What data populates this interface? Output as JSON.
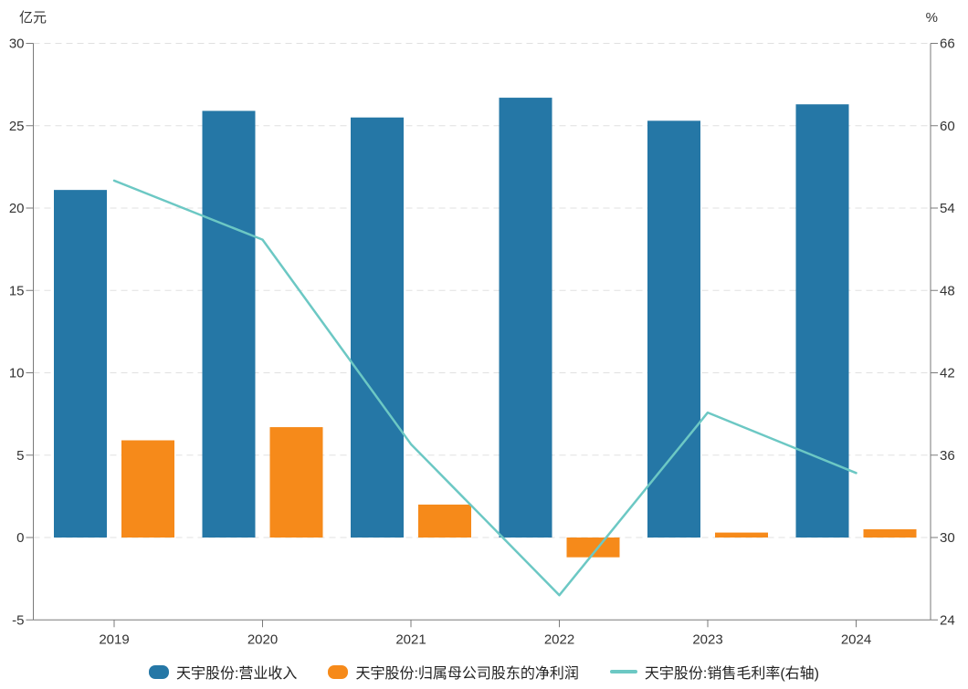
{
  "chart_data": {
    "type": "combo_bar_line",
    "categories": [
      "2019",
      "2020",
      "2021",
      "2022",
      "2023",
      "2024"
    ],
    "series": [
      {
        "key": "revenue",
        "name": "天宇股份:营业收入",
        "type": "bar",
        "axis": "left",
        "color": "#2577a6",
        "values": [
          21.1,
          25.9,
          25.5,
          26.7,
          25.3,
          26.3
        ]
      },
      {
        "key": "net-profit",
        "name": "天宇股份:归属母公司股东的净利润",
        "type": "bar",
        "axis": "left",
        "color": "#f68a1a",
        "values": [
          5.9,
          6.7,
          2.0,
          -1.2,
          0.3,
          0.5
        ]
      },
      {
        "key": "gross-margin",
        "name": "天宇股份:销售毛利率(右轴)",
        "type": "line",
        "axis": "right",
        "color": "#6cc8c4",
        "values": [
          56.0,
          51.7,
          36.8,
          25.8,
          39.1,
          34.7
        ]
      }
    ],
    "left_axis": {
      "title": "亿元",
      "min": -5,
      "max": 30,
      "step": 5,
      "tick_labels": [
        "30",
        "25",
        "20",
        "15",
        "10",
        "5",
        "0",
        "-5"
      ]
    },
    "right_axis": {
      "title": "%",
      "min": 24,
      "max": 66,
      "step": 6,
      "tick_labels": [
        "66",
        "60",
        "54",
        "48",
        "42",
        "36",
        "30",
        "24"
      ]
    },
    "legend_position": "bottom",
    "grid": "horizontal-dashed"
  },
  "style": {
    "background": "#ffffff",
    "grid_color": "#e0e0e0",
    "axis_color": "#7a7a7a",
    "tick_text_color": "#333333",
    "legend_text_color": "#222222"
  }
}
